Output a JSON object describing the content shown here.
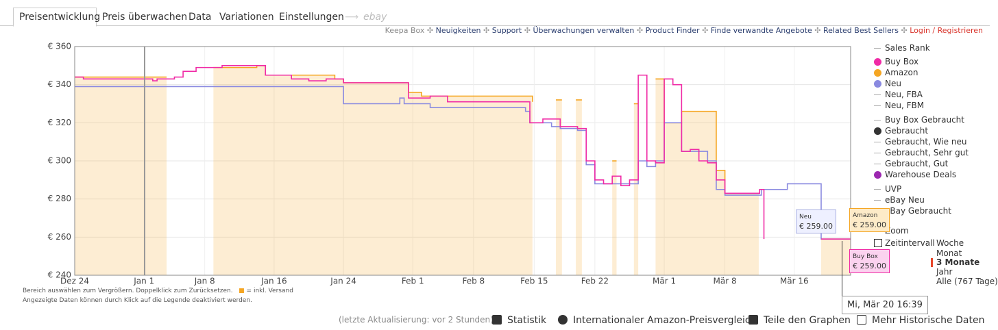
{
  "tabs": [
    "Preisentwicklung",
    "Preis überwachen",
    "Data",
    "Variationen",
    "Einstellungen",
    "ebay"
  ],
  "links": [
    "Keepa Box",
    "Neuigkeiten",
    "Support",
    "Überwachungen verwalten",
    "Product Finder",
    "Finde verwandte Angebote",
    "Related Best Sellers",
    "Login / Registrieren"
  ],
  "chart_data": {
    "type": "line",
    "step": true,
    "xlim": [
      0,
      89.5
    ],
    "ylim": [
      240,
      360
    ],
    "xticks": [
      {
        "value": 0,
        "label": "Dez 24"
      },
      {
        "value": 8,
        "label": "Jan 1"
      },
      {
        "value": 15,
        "label": "Jan 8"
      },
      {
        "value": 23,
        "label": "Jan 16"
      },
      {
        "value": 31,
        "label": "Jan 24"
      },
      {
        "value": 39,
        "label": "Feb 1"
      },
      {
        "value": 46,
        "label": "Feb 8"
      },
      {
        "value": 53,
        "label": "Feb 15"
      },
      {
        "value": 60,
        "label": "Feb 22"
      },
      {
        "value": 68,
        "label": "Mär 1"
      },
      {
        "value": 75,
        "label": "Mär 8"
      },
      {
        "value": 83,
        "label": "Mär 16"
      }
    ],
    "yticks": [
      {
        "value": 240,
        "label": "€ 240"
      },
      {
        "value": 260,
        "label": "€ 260"
      },
      {
        "value": 280,
        "label": "€ 280"
      },
      {
        "value": 300,
        "label": "€ 300"
      },
      {
        "value": 320,
        "label": "€ 320"
      },
      {
        "value": 340,
        "label": "€ 340"
      },
      {
        "value": 360,
        "label": "€ 360"
      }
    ],
    "grid": true,
    "series": [
      {
        "name": "Buy Box",
        "color": "#f02ba6",
        "fill_area": false,
        "x": [
          0,
          1,
          3,
          9,
          9.5,
          11.5,
          12.5,
          14,
          17,
          20,
          22,
          25,
          27,
          29,
          31,
          37,
          38.5,
          41,
          43,
          52,
          52.5,
          54,
          56,
          58,
          59,
          60,
          61,
          62,
          63,
          64,
          65,
          66,
          67,
          68,
          69,
          70,
          71,
          72,
          73,
          74,
          75,
          78,
          79,
          79.5,
          null,
          86.1,
          89.5
        ],
        "values": [
          344,
          343,
          343,
          342,
          343,
          344,
          347,
          349,
          350,
          350,
          345,
          343,
          342,
          343,
          341,
          341,
          333,
          334,
          331,
          331,
          320,
          322,
          318,
          317,
          300,
          290,
          288,
          292,
          287,
          290,
          345,
          300,
          299,
          343,
          340,
          305,
          306,
          300,
          299,
          290,
          283,
          283,
          285,
          259,
          null,
          259,
          259
        ]
      },
      {
        "name": "Amazon",
        "color": "#f5a623",
        "fill_area": true,
        "x": [
          0,
          10.6,
          null,
          16,
          21,
          22,
          30,
          31,
          38.5,
          40,
          52.8,
          null,
          55.5,
          56.2,
          null,
          57.8,
          58.5,
          null,
          62,
          62.5,
          null,
          64.5,
          65,
          null,
          67,
          68,
          70,
          72,
          73,
          74,
          75,
          78.9,
          null,
          86.1,
          89.5
        ],
        "values": [
          344,
          344,
          null,
          349,
          350,
          345,
          343,
          341,
          336,
          334,
          331,
          null,
          332,
          332,
          null,
          332,
          332,
          null,
          300,
          300,
          null,
          330,
          330,
          null,
          343,
          320,
          326,
          326,
          326,
          295,
          283,
          283,
          null,
          259,
          259
        ]
      },
      {
        "name": "Neu",
        "color": "#8a8ae0",
        "fill_area": false,
        "x": [
          0,
          31,
          34,
          37.5,
          38,
          41,
          52,
          52.5,
          55,
          56,
          58,
          59,
          60,
          63,
          65,
          66,
          67,
          68,
          69,
          70,
          73,
          74,
          75,
          79,
          79.2,
          82.2,
          86.1,
          89.5
        ],
        "values": [
          339,
          330,
          330,
          333,
          330,
          328,
          326,
          320,
          318,
          317,
          316,
          298,
          288,
          288,
          300,
          297,
          300,
          320,
          320,
          305,
          300,
          285,
          282,
          282,
          285,
          288,
          259,
          259
        ]
      }
    ]
  },
  "legend_other": [
    "Sales Rank",
    "Neu, FBA",
    "Neu, FBM",
    "Buy Box Gebraucht",
    "Gebraucht",
    "Gebraucht, Wie neu",
    "Gebraucht, Sehr gut",
    "Gebraucht, Gut",
    "Warehouse Deals",
    "UVP",
    "eBay Neu",
    "eBay Gebraucht"
  ],
  "controls": {
    "zoom": "Zoom",
    "interval": "Zeitintervall",
    "ranges": [
      "Woche",
      "Monat",
      "3 Monate",
      "Jahr",
      "Alle (767 Tage)"
    ]
  },
  "notes": [
    "Bereich auswählen zum Vergrößern. Doppelklick zum Zurücksetzen.",
    "= inkl. Versand",
    "Angezeigte Daten können durch Klick auf die Legende deaktiviert werden."
  ],
  "tooltips": [
    {
      "name": "Neu",
      "value": "€ 259.00"
    },
    {
      "name": "Amazon",
      "value": "€ 259.00"
    },
    {
      "name": "Buy Box",
      "value": "€ 259.00"
    }
  ],
  "tooltip_date": "Mi, Mär 20 16:39",
  "footer": [
    "(letzte Aktualisierung: vor 2 Stunden)",
    "Statistik",
    "Internationaler Amazon-Preisvergleich",
    "Teile den Graphen",
    "Mehr Historische Daten"
  ]
}
